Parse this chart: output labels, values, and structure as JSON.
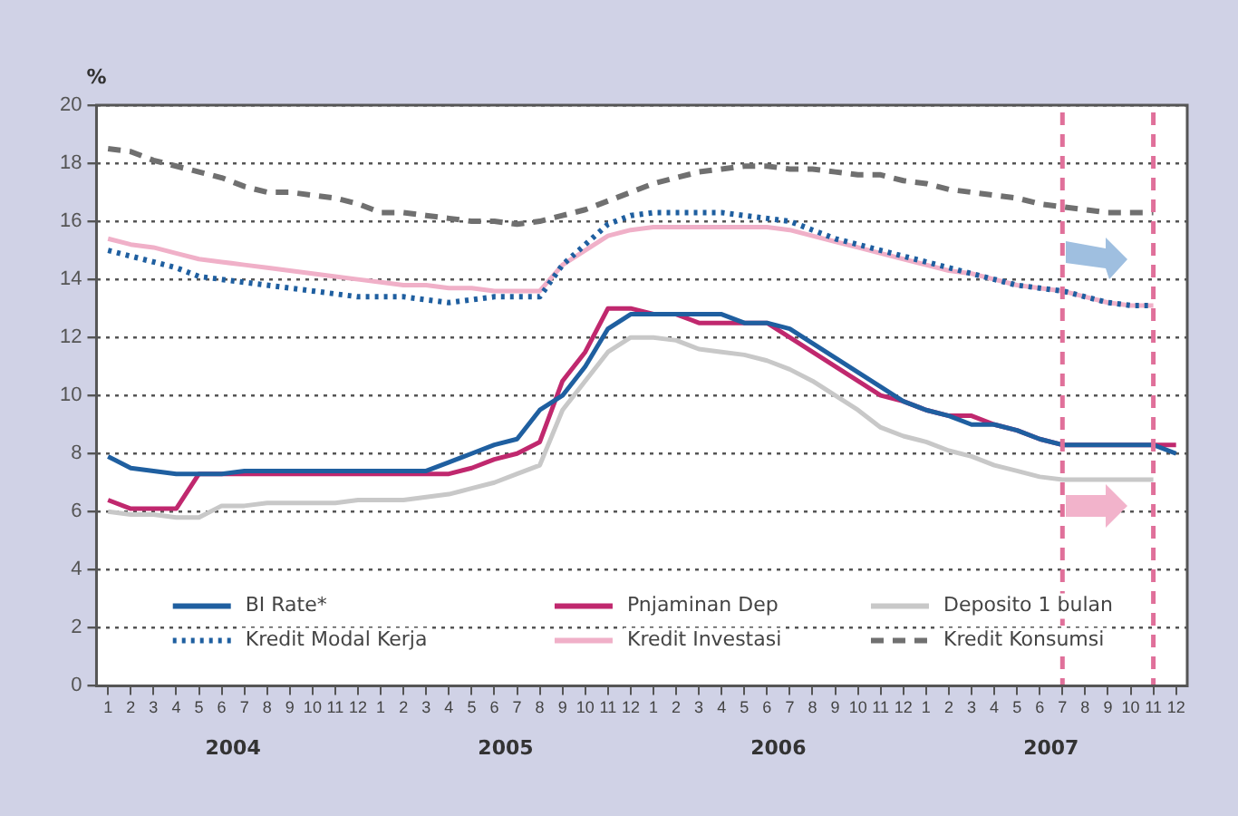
{
  "chart_data": {
    "type": "line",
    "ylabel": "%",
    "x": [
      "2004-01",
      "2004-02",
      "2004-03",
      "2004-04",
      "2004-05",
      "2004-06",
      "2004-07",
      "2004-08",
      "2004-09",
      "2004-10",
      "2004-11",
      "2004-12",
      "2005-01",
      "2005-02",
      "2005-03",
      "2005-04",
      "2005-05",
      "2005-06",
      "2005-07",
      "2005-08",
      "2005-09",
      "2005-10",
      "2005-11",
      "2005-12",
      "2006-01",
      "2006-02",
      "2006-03",
      "2006-04",
      "2006-05",
      "2006-06",
      "2006-07",
      "2006-08",
      "2006-09",
      "2006-10",
      "2006-11",
      "2006-12",
      "2007-01",
      "2007-02",
      "2007-03",
      "2007-04",
      "2007-05",
      "2007-06",
      "2007-07",
      "2007-08",
      "2007-09",
      "2007-10",
      "2007-11",
      "2007-12"
    ],
    "xlim": [
      "2003-12-16",
      "2007-12-16"
    ],
    "xticks": [
      {
        "value": "2004-01",
        "label": "1"
      },
      {
        "value": "2004-02",
        "label": "2"
      },
      {
        "value": "2004-03",
        "label": "3"
      },
      {
        "value": "2004-04",
        "label": "4"
      },
      {
        "value": "2004-05",
        "label": "5"
      },
      {
        "value": "2004-06",
        "label": "6"
      },
      {
        "value": "2004-07",
        "label": "7"
      },
      {
        "value": "2004-08",
        "label": "8"
      },
      {
        "value": "2004-09",
        "label": "9"
      },
      {
        "value": "2004-10",
        "label": "10"
      },
      {
        "value": "2004-11",
        "label": "11"
      },
      {
        "value": "2004-12",
        "label": "12"
      },
      {
        "value": "2005-01",
        "label": "1"
      },
      {
        "value": "2005-02",
        "label": "2"
      },
      {
        "value": "2005-03",
        "label": "3"
      },
      {
        "value": "2005-04",
        "label": "4"
      },
      {
        "value": "2005-05",
        "label": "5"
      },
      {
        "value": "2005-06",
        "label": "6"
      },
      {
        "value": "2005-07",
        "label": "7"
      },
      {
        "value": "2005-08",
        "label": "8"
      },
      {
        "value": "2005-09",
        "label": "9"
      },
      {
        "value": "2005-10",
        "label": "10"
      },
      {
        "value": "2005-11",
        "label": "11"
      },
      {
        "value": "2005-12",
        "label": "12"
      },
      {
        "value": "2006-01",
        "label": "1"
      },
      {
        "value": "2006-02",
        "label": "2"
      },
      {
        "value": "2006-03",
        "label": "3"
      },
      {
        "value": "2006-04",
        "label": "4"
      },
      {
        "value": "2006-05",
        "label": "5"
      },
      {
        "value": "2006-06",
        "label": "6"
      },
      {
        "value": "2006-07",
        "label": "7"
      },
      {
        "value": "2006-08",
        "label": "8"
      },
      {
        "value": "2006-09",
        "label": "9"
      },
      {
        "value": "2006-10",
        "label": "10"
      },
      {
        "value": "2006-11",
        "label": "11"
      },
      {
        "value": "2006-12",
        "label": "12"
      },
      {
        "value": "2007-01",
        "label": "1"
      },
      {
        "value": "2007-02",
        "label": "2"
      },
      {
        "value": "2007-03",
        "label": "3"
      },
      {
        "value": "2007-04",
        "label": "4"
      },
      {
        "value": "2007-05",
        "label": "5"
      },
      {
        "value": "2007-06",
        "label": "6"
      },
      {
        "value": "2007-07",
        "label": "7"
      },
      {
        "value": "2007-08",
        "label": "8"
      },
      {
        "value": "2007-09",
        "label": "9"
      },
      {
        "value": "2007-10",
        "label": "10"
      },
      {
        "value": "2007-11",
        "label": "11"
      },
      {
        "value": "2007-12",
        "label": "12"
      }
    ],
    "ylim": [
      0,
      20
    ],
    "yticks": [
      0,
      2,
      4,
      6,
      8,
      10,
      12,
      14,
      16,
      18,
      20
    ],
    "grid": "y",
    "legend": "bottom",
    "marker": "none",
    "annotations": [
      "2004",
      "2005",
      "2006",
      "2007"
    ],
    "ref_lines": [
      {
        "axis": "x",
        "value": "2007-07",
        "color": "#e0709a",
        "line_style": "dashed"
      },
      {
        "axis": "x",
        "value": "2007-11",
        "color": "#e0709a",
        "line_style": "dashed"
      }
    ],
    "series": [
      {
        "name": "BI Rate*",
        "color": "#1f5fa0",
        "line_style": "solid",
        "values": [
          7.9,
          7.5,
          7.4,
          7.3,
          7.3,
          7.3,
          7.4,
          7.4,
          7.4,
          7.4,
          7.4,
          7.4,
          7.4,
          7.4,
          7.4,
          7.7,
          8.0,
          8.3,
          8.5,
          9.5,
          10.0,
          11.0,
          12.3,
          12.8,
          12.8,
          12.8,
          12.8,
          12.8,
          12.5,
          12.5,
          12.3,
          11.8,
          11.3,
          10.8,
          10.3,
          9.8,
          9.5,
          9.3,
          9.0,
          9.0,
          8.8,
          8.5,
          8.3,
          8.3,
          8.3,
          8.3,
          8.3,
          8.0
        ]
      },
      {
        "name": "Pnjaminan Dep",
        "color": "#c0286e",
        "line_style": "solid",
        "values": [
          6.4,
          6.1,
          6.1,
          6.1,
          7.3,
          7.3,
          7.3,
          7.3,
          7.3,
          7.3,
          7.3,
          7.3,
          7.3,
          7.3,
          7.3,
          7.3,
          7.5,
          7.8,
          8.0,
          8.4,
          10.5,
          11.5,
          13.0,
          13.0,
          12.8,
          12.8,
          12.5,
          12.5,
          12.5,
          12.5,
          12.0,
          11.5,
          11.0,
          10.5,
          10.0,
          9.8,
          9.5,
          9.3,
          9.3,
          9.0,
          8.8,
          8.5,
          8.3,
          8.3,
          8.3,
          8.3,
          8.3,
          8.3
        ]
      },
      {
        "name": "Deposito 1 bulan",
        "color": "#c8c8c8",
        "line_style": "solid",
        "values": [
          6.0,
          5.9,
          5.9,
          5.8,
          5.8,
          6.2,
          6.2,
          6.3,
          6.3,
          6.3,
          6.3,
          6.4,
          6.4,
          6.4,
          6.5,
          6.6,
          6.8,
          7.0,
          7.3,
          7.6,
          9.5,
          10.5,
          11.5,
          12.0,
          12.0,
          11.9,
          11.6,
          11.5,
          11.4,
          11.2,
          10.9,
          10.5,
          10.0,
          9.5,
          8.9,
          8.6,
          8.4,
          8.1,
          7.9,
          7.6,
          7.4,
          7.2,
          7.1,
          7.1,
          7.1,
          7.1,
          7.1,
          null
        ]
      },
      {
        "name": "Kredit Modal Kerja",
        "color": "#1f5fa0",
        "line_style": "dotted",
        "values": [
          15.0,
          14.8,
          14.6,
          14.4,
          14.1,
          14.0,
          13.9,
          13.8,
          13.7,
          13.6,
          13.5,
          13.4,
          13.4,
          13.4,
          13.3,
          13.2,
          13.3,
          13.4,
          13.4,
          13.4,
          14.5,
          15.2,
          15.9,
          16.2,
          16.3,
          16.3,
          16.3,
          16.3,
          16.2,
          16.1,
          16.0,
          15.7,
          15.4,
          15.2,
          15.0,
          14.8,
          14.6,
          14.4,
          14.2,
          14.0,
          13.8,
          13.7,
          13.6,
          13.4,
          13.2,
          13.1,
          13.1,
          null
        ]
      },
      {
        "name": "Kredit Investasi",
        "color": "#f0b0c8",
        "line_style": "solid",
        "values": [
          15.4,
          15.2,
          15.1,
          14.9,
          14.7,
          14.6,
          14.5,
          14.4,
          14.3,
          14.2,
          14.1,
          14.0,
          13.9,
          13.8,
          13.8,
          13.7,
          13.7,
          13.6,
          13.6,
          13.6,
          14.5,
          15.0,
          15.5,
          15.7,
          15.8,
          15.8,
          15.8,
          15.8,
          15.8,
          15.8,
          15.7,
          15.5,
          15.3,
          15.1,
          14.9,
          14.7,
          14.5,
          14.3,
          14.2,
          14.0,
          13.8,
          13.7,
          13.6,
          13.4,
          13.2,
          13.1,
          13.1,
          null
        ]
      },
      {
        "name": "Kredit Konsumsi",
        "color": "#707070",
        "line_style": "dashed",
        "values": [
          18.5,
          18.4,
          18.1,
          17.9,
          17.7,
          17.5,
          17.2,
          17.0,
          17.0,
          16.9,
          16.8,
          16.6,
          16.3,
          16.3,
          16.2,
          16.1,
          16.0,
          16.0,
          15.9,
          16.0,
          16.2,
          16.4,
          16.7,
          17.0,
          17.3,
          17.5,
          17.7,
          17.8,
          17.9,
          17.9,
          17.8,
          17.8,
          17.7,
          17.6,
          17.6,
          17.4,
          17.3,
          17.1,
          17.0,
          16.9,
          16.8,
          16.6,
          16.5,
          16.4,
          16.3,
          16.3,
          16.3,
          null
        ]
      }
    ]
  }
}
